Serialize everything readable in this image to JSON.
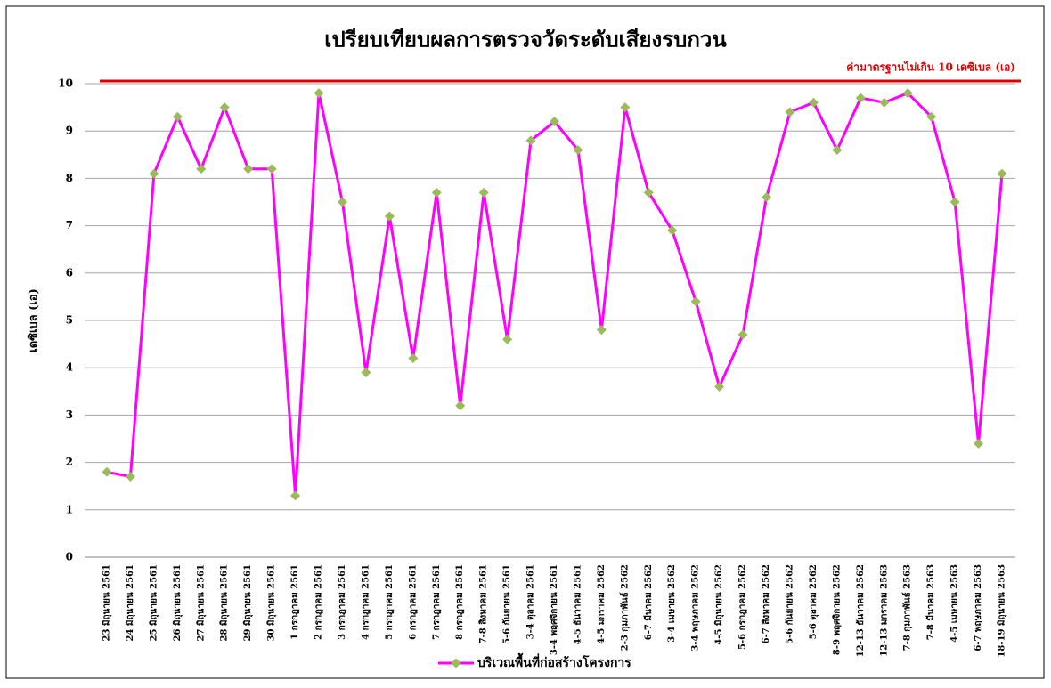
{
  "chart_data": {
    "type": "line",
    "title": "เปรียบเทียบผลการตรวจวัดระดับเสียงรบกวน",
    "y_label": "เดซิเบล (เอ)",
    "reference_line": {
      "value": 10,
      "label": "ค่ามาตรฐานไม่เกิน 10 เดซิเบล (เอ)",
      "color": "#e00000"
    },
    "categories": [
      "23 มิถุนายน 2561",
      "24 มิถุนายน 2561",
      "25 มิถุนายน 2561",
      "26 มิถุนายน 2561",
      "27 มิถุนายน 2561",
      "28 มิถุนายน 2561",
      "29 มิถุนายน 2561",
      "30 มิถุนายน 2561",
      "1 กรกฎาคม 2561",
      "2 กรกฎาคม 2561",
      "3 กรกฎาคม 2561",
      "4 กรกฎาคม 2561",
      "5 กรกฎาคม 2561",
      "6 กรกฎาคม 2561",
      "7 กรกฎาคม 2561",
      "8 กรกฎาคม 2561",
      "7-8 สิงหาคม 2561",
      "5-6 กันยายน 2561",
      "3-4 ตุลาคม 2561",
      "3-4 พฤศจิกายน 2561",
      "4-5 ธันวาคม 2561",
      "4-5 มกราคม 2562",
      "2-3 กุมภาพันธ์ 2562",
      "6-7 มีนาคม 2562",
      "3-4 เมษายน 2562",
      "3-4 พฤษภาคม 2562",
      "4-5 มิถุนายน 2562",
      "5-6 กรกฎาคม 2562",
      "6-7 สิงหาคม 2562",
      "5-6 กันยายน 2562",
      "5-6 ตุลาคม 2562",
      "8-9 พฤศจิกายน 2562",
      "12-13 ธันวาคม 2562",
      "12-13 มกราคม 2563",
      "7-8 กุมภาพันธ์ 2563",
      "7-8 มีนาคม 2563",
      "4-5 เมษายน 2563",
      "6-7 พฤษภาคม 2563",
      "18-19 มิถุนายน 2563"
    ],
    "series": [
      {
        "name": "บริเวณพื้นที่ก่อสร้างโครงการ",
        "color": "#ff00ff",
        "marker_color": "#9bbb59",
        "values": [
          1.8,
          1.7,
          8.1,
          9.3,
          8.2,
          9.5,
          8.2,
          8.2,
          1.3,
          9.8,
          7.5,
          3.9,
          7.2,
          4.2,
          7.7,
          3.2,
          7.7,
          4.6,
          8.8,
          9.2,
          8.6,
          4.8,
          9.5,
          7.7,
          6.9,
          5.4,
          3.6,
          4.7,
          7.6,
          9.4,
          9.6,
          8.6,
          9.7,
          9.6,
          9.8,
          9.3,
          7.5,
          2.4,
          8.1
        ]
      }
    ],
    "ylim": [
      0,
      10
    ],
    "yticks": [
      0,
      1,
      2,
      3,
      4,
      5,
      6,
      7,
      8,
      9,
      10
    ],
    "grid": true,
    "legend": "bottom"
  }
}
